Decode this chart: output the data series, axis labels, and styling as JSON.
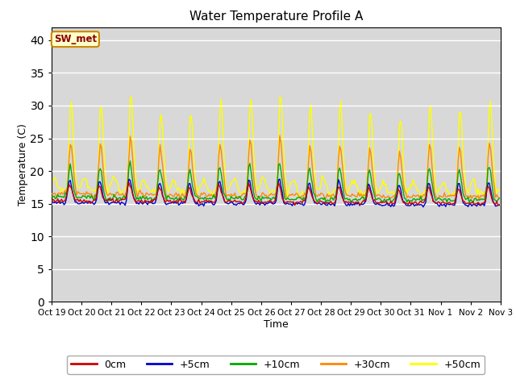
{
  "title": "Water Temperature Profile A",
  "xlabel": "Time",
  "ylabel": "Temperature (C)",
  "ylim": [
    0,
    42
  ],
  "yticks": [
    0,
    5,
    10,
    15,
    20,
    25,
    30,
    35,
    40
  ],
  "colors": {
    "0cm": "#cc0000",
    "+5cm": "#0000cc",
    "+10cm": "#00aa00",
    "+30cm": "#ff8800",
    "+50cm": "#ffff00"
  },
  "legend_labels": [
    "0cm",
    "+5cm",
    "+10cm",
    "+30cm",
    "+50cm"
  ],
  "sw_met_label": "SW_met",
  "sw_met_bg": "#ffffcc",
  "sw_met_border": "#cc8800",
  "sw_met_text_color": "#880000",
  "plot_bg": "#d8d8d8",
  "n_days": 15,
  "pts_per_day": 24,
  "tick_labels": [
    "Oct 19",
    "Oct 20",
    "Oct 21",
    "Oct 22",
    "Oct 23",
    "Oct 24",
    "Oct 25",
    "Oct 26",
    "Oct 27",
    "Oct 28",
    "Oct 29",
    "Oct 30",
    "Oct 31",
    "Nov 1",
    "Nov 2",
    "Nov 3"
  ]
}
